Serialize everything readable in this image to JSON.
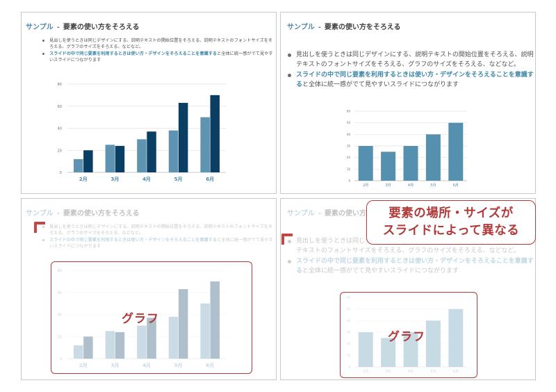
{
  "slides": {
    "title_brand": "サンプル",
    "title_sep": "-",
    "title_main": "要素の使い方をそろえる",
    "bullet1": "見出しを使うときは同じデザインにする、説明テキストの開始位置をそろえる、説明テキストのフォントサイズをそろえる、グラフのサイズをそろえる、などなど。",
    "bullet2_hl": "スライドの中で同じ要素を利用するときは使い方・デザインをそろえることを意識する",
    "bullet2_rest": "と全体に統一感がでて見やすいスライドにつながります"
  },
  "annotations": {
    "graph_label": "グラフ",
    "callout_line1": "要素の場所・サイズが",
    "callout_line2": "スライドによって異なる"
  },
  "colors": {
    "bar_light": "#5f93b2",
    "bar_dark": "#0b3e63",
    "bar_single": "#5590ae",
    "accent_red": "#b03a3a",
    "title_blue": "#4f88a8"
  },
  "chart_data": [
    {
      "type": "bar",
      "categories": [
        "2月",
        "3月",
        "4月",
        "5月",
        "6月"
      ],
      "series": [
        {
          "values": [
            12,
            25,
            30,
            38,
            50
          ]
        },
        {
          "values": [
            20,
            24,
            37,
            63,
            70
          ]
        }
      ],
      "yticks": [
        0,
        20,
        40,
        60,
        80
      ],
      "ylim": [
        0,
        80
      ],
      "grid": true
    },
    {
      "type": "bar",
      "categories": [
        "2月",
        "3月",
        "4月",
        "5月",
        "6月"
      ],
      "values": [
        30,
        25,
        30,
        40,
        50
      ],
      "yticks": [
        0,
        10,
        20,
        30,
        40,
        50,
        60
      ],
      "ylim": [
        0,
        60
      ],
      "grid": true
    }
  ]
}
